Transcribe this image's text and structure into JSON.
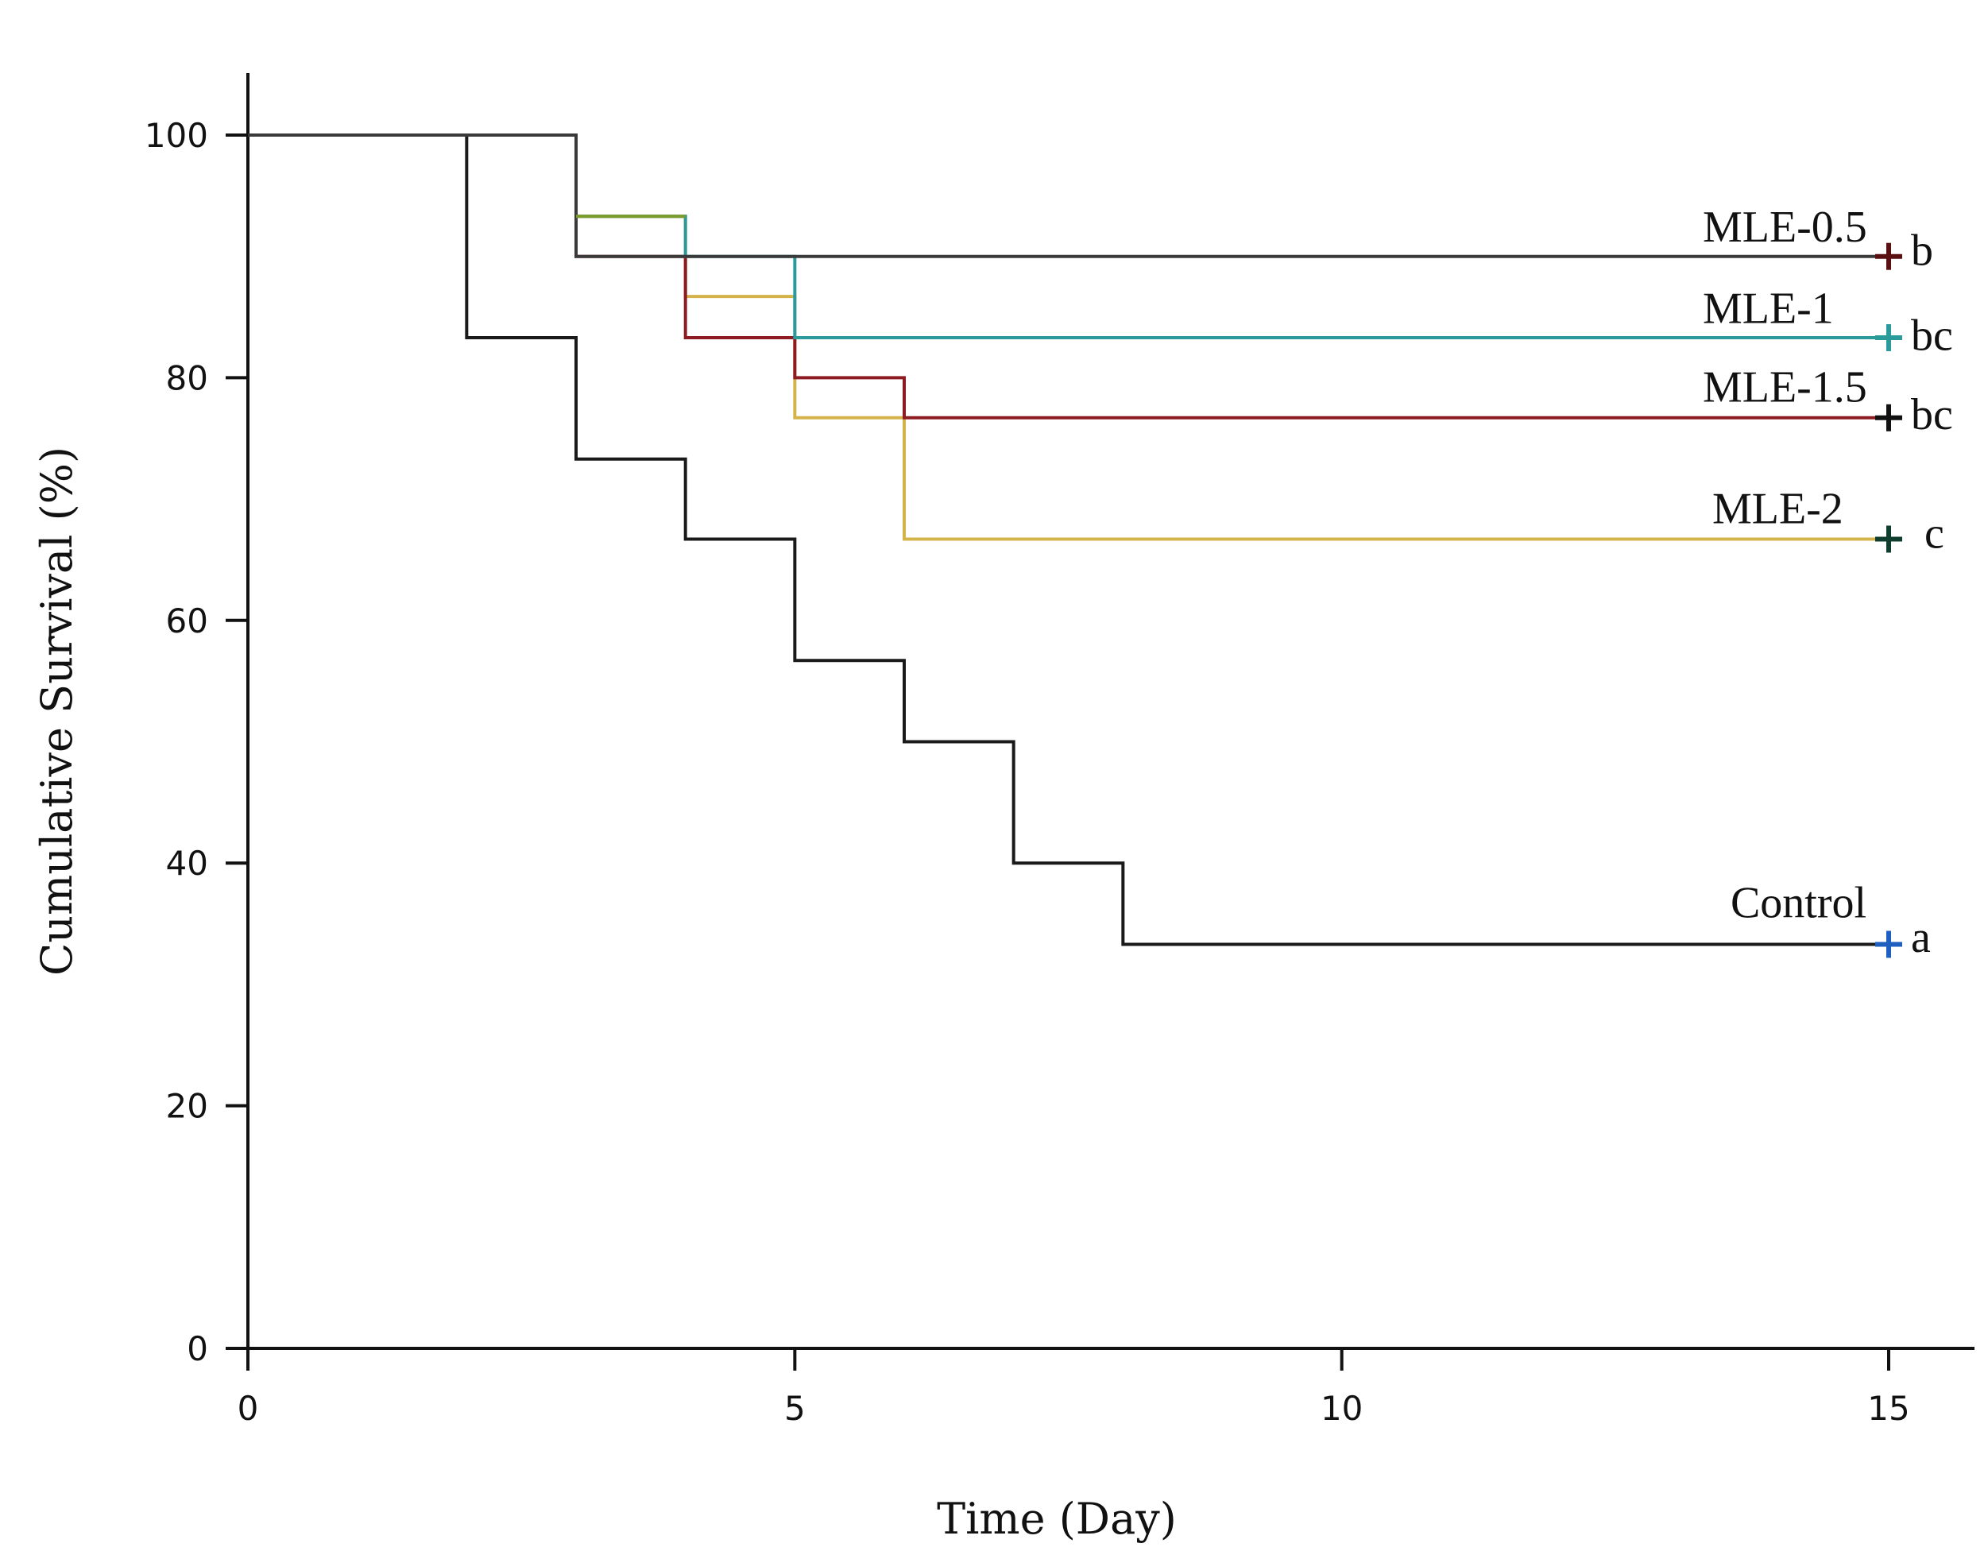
{
  "chart_data": {
    "type": "line",
    "subtype": "kaplan-meier-step",
    "xlabel": "Time (Day)",
    "ylabel": "Cumulative Survival (%)",
    "xlim": [
      0,
      15.8
    ],
    "ylim": [
      0,
      105
    ],
    "x_ticks": [
      0,
      5,
      10,
      15
    ],
    "y_ticks": [
      0,
      20,
      40,
      60,
      80,
      100
    ],
    "grid": false,
    "series": [
      {
        "name": "Control",
        "significance": "a",
        "color": "#1a1a1a",
        "censor_color": "#1f5fbf",
        "x": [
          0,
          2,
          3,
          4,
          5,
          6,
          7,
          8,
          15
        ],
        "y": [
          100,
          83.3,
          73.3,
          66.7,
          56.7,
          50,
          40,
          33.3,
          33.3
        ]
      },
      {
        "name": "MLE-2",
        "significance": "c",
        "color": "#d4b34a",
        "censor_color": "#0f3d2e",
        "x": [
          0,
          3,
          4,
          5,
          6,
          15
        ],
        "y": [
          100,
          93.3,
          86.7,
          76.7,
          66.7,
          66.7
        ]
      },
      {
        "name": "MLE-1.5",
        "significance": "bc",
        "color": "#8e1b22",
        "censor_color": "#111111",
        "x": [
          0,
          3,
          4,
          5,
          6,
          15
        ],
        "y": [
          100,
          90,
          83.3,
          80,
          76.7,
          76.7
        ]
      },
      {
        "name": "MLE-1",
        "significance": "bc",
        "color": "#2a9a9a",
        "censor_color": "#2a9a9a",
        "x": [
          0,
          3,
          4,
          5,
          15
        ],
        "y": [
          100,
          93.3,
          90,
          83.3,
          83.3
        ]
      },
      {
        "name": "MLE-0.5",
        "significance": "b",
        "color": "#3a3a3a",
        "censor_color": "#5a1010",
        "x": [
          0,
          3,
          15
        ],
        "y": [
          100,
          90,
          90
        ]
      }
    ],
    "overlays": [
      {
        "series": "MLE-1",
        "color": "#7a9a2a",
        "x": [
          3,
          4
        ],
        "y": [
          93.3,
          93.3
        ]
      }
    ],
    "label_anchor_x": 13.3,
    "label_y": {
      "MLE-0.5": 92.4,
      "MLE-1": 85.7,
      "MLE-1.5": 79.2,
      "MLE-2": 69.2,
      "Control": 36.7
    },
    "sig_y": {
      "MLE-0.5": 90.2,
      "MLE-1": 83.2,
      "MLE-1.5": 76.7,
      "MLE-2": 66.9,
      "Control": 33.6
    }
  }
}
